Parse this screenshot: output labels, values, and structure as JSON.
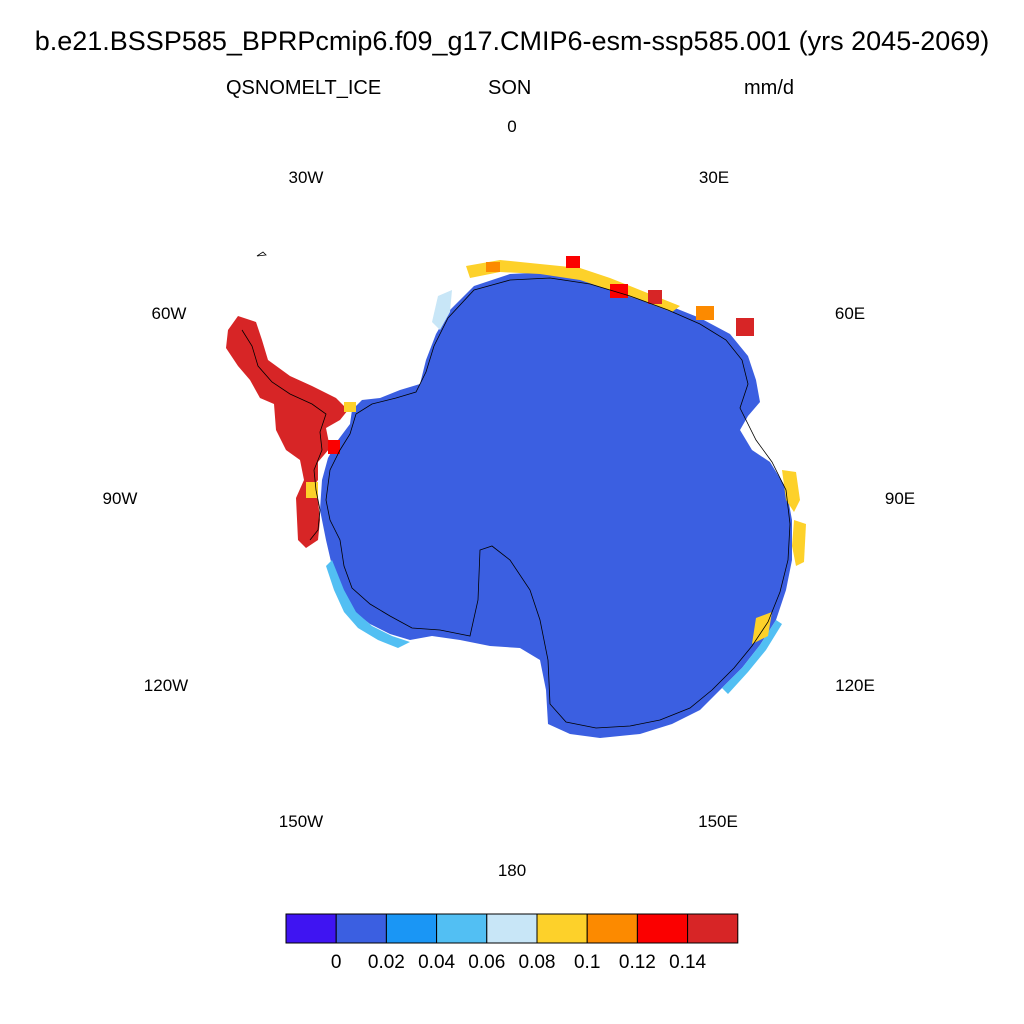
{
  "header": {
    "title": "b.e21.BSSP585_BPRPcmip6.f09_g17.CMIP6-esm-ssp585.001 (yrs 2045-2069)",
    "variable": "QSNOMELT_ICE",
    "season": "SON",
    "units": "mm/d"
  },
  "longitude_labels": [
    "0",
    "30E",
    "60E",
    "90E",
    "120E",
    "150E",
    "180",
    "150W",
    "120W",
    "90W",
    "60W",
    "30W"
  ],
  "colorbar": {
    "colors": [
      "#3f14f2",
      "#3b5fe1",
      "#1a96f5",
      "#52bff3",
      "#c8e6f7",
      "#fdd12a",
      "#fc8a00",
      "#fb0000",
      "#d72526"
    ],
    "labels": [
      "0",
      "0.02",
      "0.04",
      "0.06",
      "0.08",
      "0.1",
      "0.12",
      "0.14"
    ]
  },
  "map_colors": {
    "interior": "#3b5fe1",
    "coastline": "#000000"
  }
}
